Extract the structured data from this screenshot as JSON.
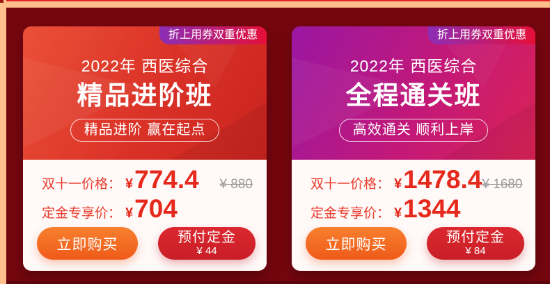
{
  "theme": {
    "page_background": "#75060F",
    "border_peach": "#FFBE8C",
    "top_line": "#E3242B",
    "notch": "#9E1212",
    "footer_strip": "#5A040C",
    "card_body_bg": "#FFF9F8",
    "label_red": "#E93A2C",
    "price_red": "#E6291D",
    "strike_gray": "#9B9B9B",
    "buy_from": "#F8802E",
    "buy_to": "#EF5A19",
    "deposit_from": "#DC2830",
    "deposit_to": "#C81E26",
    "pill_border": "rgba(255,255,255,0.85)"
  },
  "cards": [
    {
      "ribbon": "折上用券双重优惠",
      "subject": "2022年 西医综合",
      "title": "精品进阶班",
      "slogan": "精品进阶 赢在起点",
      "price_label": "双十一价格：",
      "currency": "¥",
      "price": "774.4",
      "original_price": "¥ 880",
      "deposit_label": "定金专享价：",
      "deposit_price": "704",
      "buy_button": "立即购买",
      "deposit_button_title": "预付定金",
      "deposit_button_amount": "¥ 44",
      "header_gradient": [
        "#EB5038",
        "#DA3127",
        "#C8241E"
      ],
      "ribbon_gradient": [
        "#8C2EB7",
        "#E60F38"
      ]
    },
    {
      "ribbon": "折上用券双重优惠",
      "subject": "2022年 西医综合",
      "title": "全程通关班",
      "slogan": "高效通关 顺利上岸",
      "price_label": "双十一价格：",
      "currency": "¥",
      "price": "1478.4",
      "original_price": "¥ 1680",
      "deposit_label": "定金专享价：",
      "deposit_price": "1344",
      "buy_button": "立即购买",
      "deposit_button_title": "预付定金",
      "deposit_button_amount": "¥ 84",
      "header_gradient": [
        "#9A17A2",
        "#C31878",
        "#DB2355"
      ],
      "ribbon_gradient": [
        "#8C2EB7",
        "#E60F38"
      ]
    }
  ]
}
